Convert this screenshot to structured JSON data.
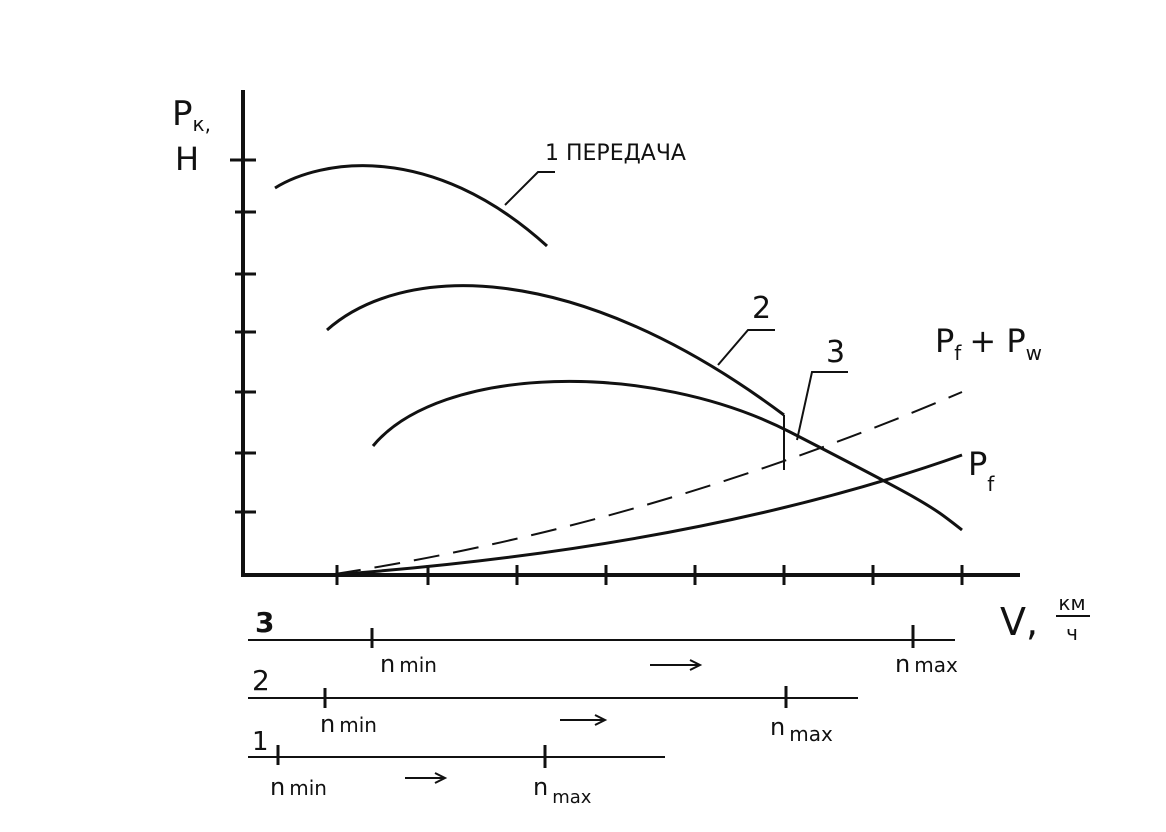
{
  "axes": {
    "y_label": "P",
    "y_label_sub": "к,",
    "y_unit": "Н",
    "x_label": "V,",
    "x_unit_num": "км",
    "x_unit_den": "ч"
  },
  "curves": {
    "gear1": "1 ПЕРЕДАЧА",
    "gear2": "2",
    "gear3": "3",
    "pf_pw": {
      "p1": "P",
      "s1": "f",
      "plus": "+ P",
      "s2": "w"
    },
    "pf": {
      "p": "P",
      "s": "f"
    }
  },
  "ranges": [
    {
      "gear": "3",
      "min": "n",
      "min_sub": "min",
      "max": "n",
      "max_sub": "max"
    },
    {
      "gear": "2",
      "min": "n",
      "min_sub": "min",
      "max": "n",
      "max_sub": "max"
    },
    {
      "gear": "1",
      "min": "n",
      "min_sub": "min",
      "max": "n",
      "max_sub": "max"
    }
  ]
}
